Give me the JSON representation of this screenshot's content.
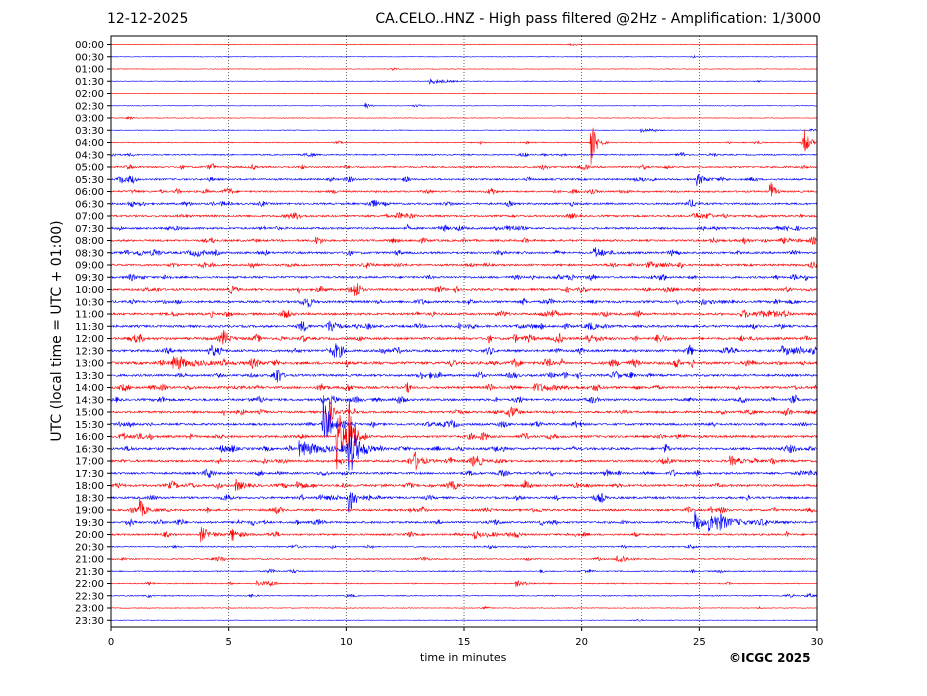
{
  "header": {
    "date": "12-12-2025",
    "title": "CA.CELO..HNZ - High pass filtered @2Hz - Amplification: 1/3000"
  },
  "footer": {
    "copyright": "©ICGC 2025"
  },
  "chart_data": {
    "type": "line",
    "xlabel": "time in minutes",
    "ylabel": "UTC (local time = UTC + 01:00)",
    "xlim": [
      0,
      30
    ],
    "x_ticks": [
      "0",
      "5",
      "10",
      "15",
      "20",
      "25",
      "30"
    ],
    "y_ticks": [
      "00:00",
      "00:30",
      "01:00",
      "01:30",
      "02:00",
      "02:30",
      "03:00",
      "03:30",
      "04:00",
      "04:30",
      "05:00",
      "05:30",
      "06:00",
      "06:30",
      "07:00",
      "07:30",
      "08:00",
      "08:30",
      "09:00",
      "09:30",
      "10:00",
      "10:30",
      "11:00",
      "11:30",
      "12:00",
      "12:30",
      "13:00",
      "13:30",
      "14:00",
      "14:30",
      "15:00",
      "15:30",
      "16:00",
      "16:30",
      "17:00",
      "17:30",
      "18:00",
      "18:30",
      "19:00",
      "19:30",
      "20:00",
      "20:30",
      "21:00",
      "21:30",
      "22:00",
      "22:30",
      "23:00",
      "23:30"
    ],
    "grid": "vertical dotted lines at every 5 minutes",
    "trace_colors": [
      "#ff0000",
      "#0000ff"
    ],
    "trace_noise_level": [
      0.05,
      0.04,
      0.04,
      0.06,
      0.03,
      0.05,
      0.06,
      0.08,
      0.18,
      0.3,
      0.45,
      0.5,
      0.5,
      0.55,
      0.55,
      0.6,
      0.6,
      0.65,
      0.6,
      0.6,
      0.65,
      0.7,
      0.7,
      0.7,
      0.75,
      0.75,
      0.85,
      0.7,
      0.7,
      0.7,
      0.65,
      0.65,
      0.7,
      0.75,
      0.7,
      0.65,
      0.7,
      0.65,
      0.6,
      0.6,
      0.5,
      0.3,
      0.25,
      0.22,
      0.2,
      0.18,
      0.1,
      0.05
    ],
    "events": [
      {
        "row": 3,
        "minute": 13.5,
        "amp": 3,
        "dur": 1.0
      },
      {
        "row": 5,
        "minute": 10.8,
        "amp": 4,
        "dur": 0.2
      },
      {
        "row": 7,
        "minute": 22.5,
        "amp": 2,
        "dur": 0.6
      },
      {
        "row": 8,
        "minute": 20.4,
        "amp": 22,
        "dur": 0.3
      },
      {
        "row": 8,
        "minute": 29.4,
        "amp": 18,
        "dur": 0.3
      },
      {
        "row": 11,
        "minute": 24.9,
        "amp": 6,
        "dur": 0.5
      },
      {
        "row": 12,
        "minute": 28.0,
        "amp": 14,
        "dur": 0.2
      },
      {
        "row": 17,
        "minute": 20.5,
        "amp": 6,
        "dur": 0.7
      },
      {
        "row": 24,
        "minute": 4.7,
        "amp": 6,
        "dur": 0.4
      },
      {
        "row": 24,
        "minute": 20.2,
        "amp": 6,
        "dur": 0.5
      },
      {
        "row": 25,
        "minute": 28.5,
        "amp": 4,
        "dur": 2.0
      },
      {
        "row": 26,
        "minute": 3.0,
        "amp": 3,
        "dur": 2.0
      },
      {
        "row": 28,
        "minute": 18.0,
        "amp": 4,
        "dur": 1.5
      },
      {
        "row": 30,
        "minute": 9.2,
        "amp": 30,
        "dur": 0.2
      },
      {
        "row": 31,
        "minute": 9.0,
        "amp": 32,
        "dur": 0.4
      },
      {
        "row": 32,
        "minute": 9.6,
        "amp": 36,
        "dur": 0.4
      },
      {
        "row": 32,
        "minute": 10.1,
        "amp": 40,
        "dur": 0.3
      },
      {
        "row": 33,
        "minute": 8.0,
        "amp": 8,
        "dur": 1.5
      },
      {
        "row": 33,
        "minute": 10.1,
        "amp": 30,
        "dur": 0.5
      },
      {
        "row": 34,
        "minute": 12.9,
        "amp": 7,
        "dur": 0.5
      },
      {
        "row": 34,
        "minute": 26.3,
        "amp": 5,
        "dur": 0.6
      },
      {
        "row": 36,
        "minute": 5.3,
        "amp": 6,
        "dur": 0.5
      },
      {
        "row": 36,
        "minute": 7.9,
        "amp": 6,
        "dur": 0.4
      },
      {
        "row": 37,
        "minute": 10.1,
        "amp": 16,
        "dur": 0.4
      },
      {
        "row": 38,
        "minute": 1.2,
        "amp": 9,
        "dur": 0.4
      },
      {
        "row": 39,
        "minute": 24.8,
        "amp": 12,
        "dur": 0.4
      },
      {
        "row": 39,
        "minute": 25.4,
        "amp": 9,
        "dur": 1.5
      },
      {
        "row": 40,
        "minute": 3.8,
        "amp": 8,
        "dur": 0.6
      },
      {
        "row": 40,
        "minute": 5.1,
        "amp": 7,
        "dur": 0.5
      },
      {
        "row": 40,
        "minute": 15.4,
        "amp": 5,
        "dur": 0.4
      },
      {
        "row": 42,
        "minute": 21.5,
        "amp": 3,
        "dur": 0.6
      },
      {
        "row": 44,
        "minute": 6.2,
        "amp": 3,
        "dur": 0.4
      },
      {
        "row": 44,
        "minute": 17.2,
        "amp": 3,
        "dur": 0.6
      }
    ]
  }
}
